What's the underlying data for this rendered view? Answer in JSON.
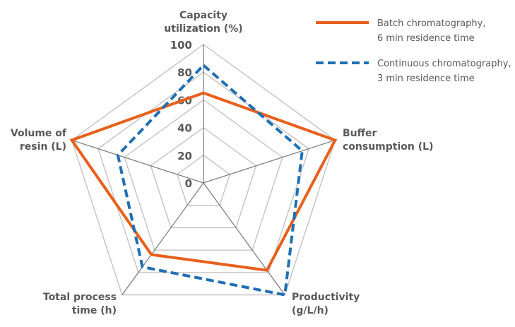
{
  "chart_data": {
    "type": "radar",
    "axes": [
      [
        "Capacity",
        "utilization (%)"
      ],
      [
        "Buffer",
        "consumption (L)"
      ],
      [
        "Productivity",
        "(g/L/h)"
      ],
      [
        "Total process",
        "time (h)"
      ],
      [
        "Volume of",
        "resin (L)"
      ]
    ],
    "rlim": [
      0,
      100
    ],
    "ticks": [
      "0",
      "20",
      "40",
      "60",
      "80",
      "100"
    ],
    "grid": true,
    "legend_position": "top-right",
    "series": [
      {
        "name": [
          "Batch chromatography,",
          "6 min residence time"
        ],
        "color": "#E8601C",
        "style": "solid",
        "values": [
          65,
          100,
          78,
          64,
          100
        ]
      },
      {
        "name": [
          "Continuous chromatography,",
          "3 min residence time"
        ],
        "color": "#1F6FB5",
        "style": "dashed",
        "values": [
          85,
          75,
          100,
          75,
          65
        ]
      }
    ]
  }
}
